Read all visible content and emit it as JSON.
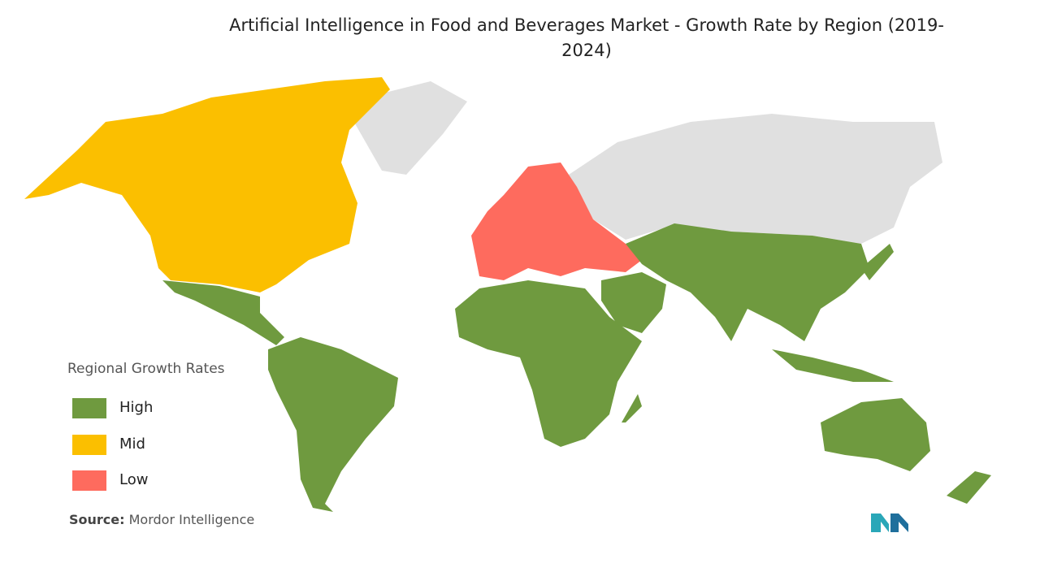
{
  "title": "Artificial Intelligence in Food and Beverages Market - Growth Rate by Region (2019-2024)",
  "legend": {
    "title": "Regional Growth Rates",
    "items": [
      {
        "label": "High",
        "color": "#6f9a3f"
      },
      {
        "label": "Mid",
        "color": "#fbbf00"
      },
      {
        "label": "Low",
        "color": "#fe6b5e"
      }
    ]
  },
  "source": {
    "label": "Source:",
    "text": "Mordor Intelligence"
  }
}
